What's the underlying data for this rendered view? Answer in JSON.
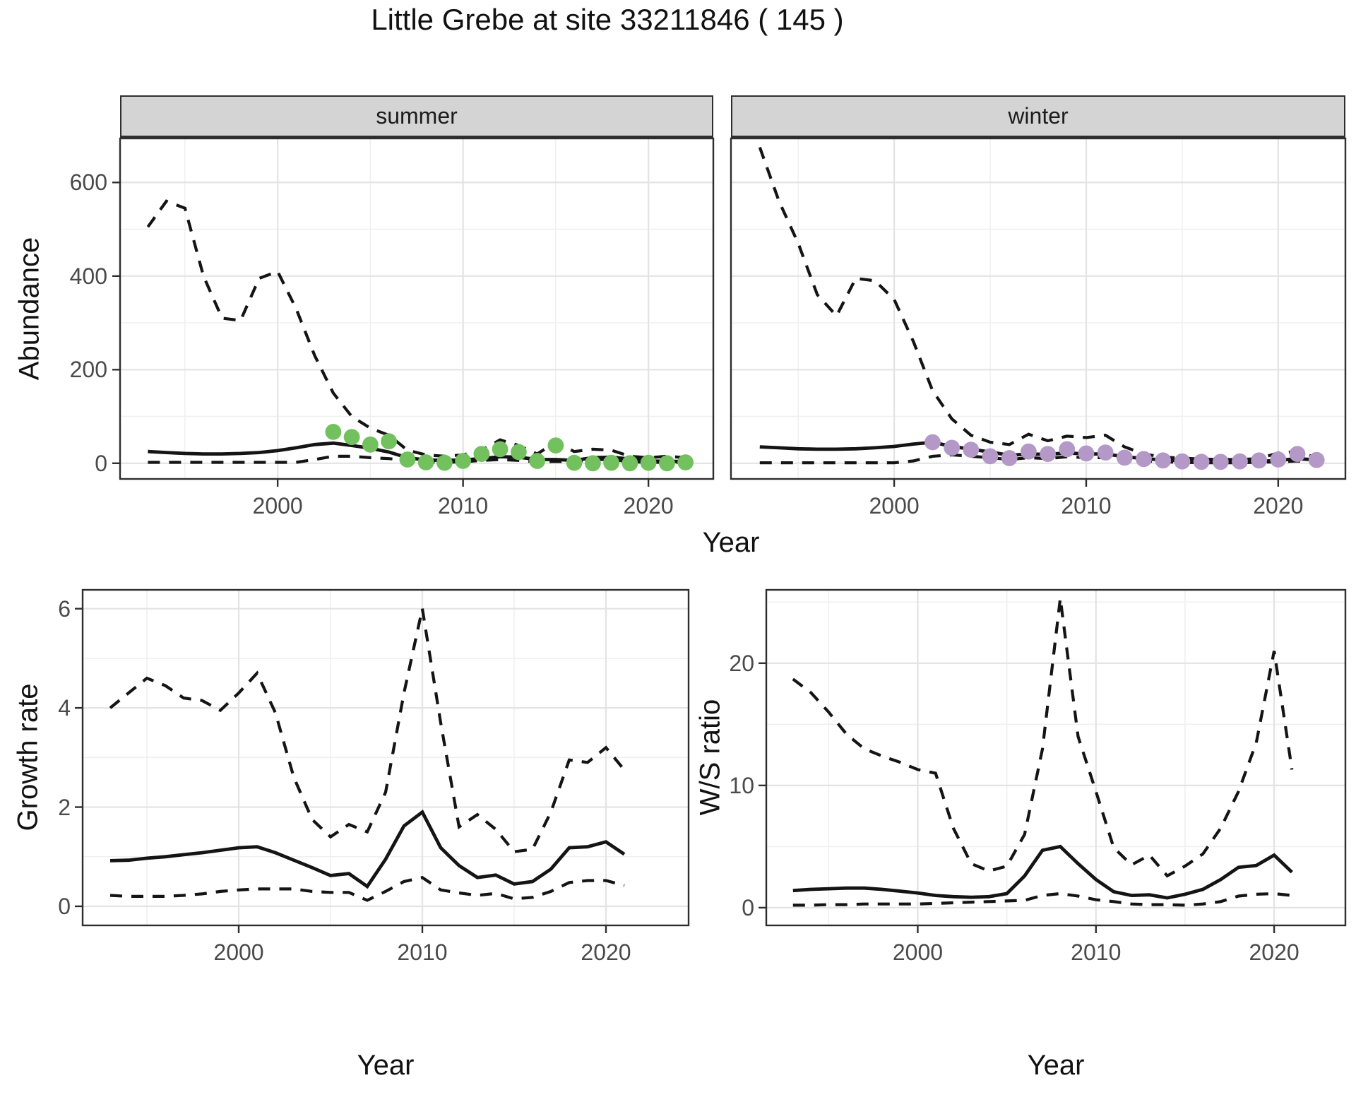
{
  "title": "Little Grebe at site 33211846 ( 145 )",
  "colors": {
    "line": "#141414",
    "border": "#2e2e2e",
    "grid_major": "#e3e3e3",
    "grid_minor": "#f0f0f0",
    "strip_bg": "#d4d4d4",
    "tick_text": "#4a4a4a",
    "summer_point": "#73c05f",
    "winter_point": "#b498c8"
  },
  "top": {
    "facet_labels": [
      "summer",
      "winter"
    ],
    "ylabel": "Abundance",
    "xlabel": "Year",
    "yticks": [
      0,
      200,
      400,
      600
    ],
    "xticks": [
      2000,
      2010,
      2020
    ]
  },
  "bottom_left": {
    "ylabel": "Growth rate",
    "xlabel": "Year",
    "yticks": [
      0,
      2,
      4,
      6
    ],
    "xticks": [
      2000,
      2010,
      2020
    ]
  },
  "bottom_right": {
    "ylabel": "W/S ratio",
    "xlabel": "Year",
    "yticks": [
      0,
      10,
      20
    ],
    "xticks": [
      2000,
      2010,
      2020
    ]
  },
  "chart_data": [
    {
      "id": "abundance_summer",
      "type": "line",
      "facet": "summer",
      "xlabel": "Year",
      "ylabel": "Abundance",
      "ylim": [
        0,
        694
      ],
      "xticks": [
        2000,
        2010,
        2020
      ],
      "yticks": [
        0,
        200,
        400,
        600
      ],
      "x": [
        1993,
        1994,
        1995,
        1996,
        1997,
        1998,
        1999,
        2000,
        2001,
        2002,
        2003,
        2004,
        2005,
        2006,
        2007,
        2008,
        2009,
        2010,
        2011,
        2012,
        2013,
        2014,
        2015,
        2016,
        2017,
        2018,
        2019,
        2020,
        2021,
        2022
      ],
      "series": [
        {
          "name": "upper 95% CI",
          "style": "dashed",
          "values": [
            505,
            560,
            545,
            400,
            310,
            305,
            395,
            410,
            330,
            230,
            150,
            100,
            75,
            60,
            28,
            18,
            15,
            18,
            28,
            50,
            38,
            20,
            45,
            25,
            30,
            28,
            15,
            12,
            15,
            12
          ]
        },
        {
          "name": "median fit",
          "style": "solid",
          "values": [
            25,
            23,
            21,
            20,
            20,
            21,
            23,
            27,
            33,
            40,
            43,
            38,
            32,
            24,
            12,
            7,
            6,
            7,
            10,
            14,
            13,
            8,
            8,
            6,
            12,
            13,
            9,
            5,
            4,
            4
          ]
        },
        {
          "name": "lower 95% CI",
          "style": "dashed",
          "values": [
            2,
            2,
            2,
            2,
            2,
            2,
            2,
            2,
            2,
            8,
            15,
            15,
            12,
            10,
            6,
            3,
            2,
            3,
            6,
            8,
            6,
            3,
            4,
            3,
            8,
            8,
            3,
            2,
            2,
            2
          ]
        }
      ],
      "points": {
        "name": "observed summer counts",
        "color": "#73c05f",
        "x": [
          2003,
          2004,
          2005,
          2006,
          2007,
          2008,
          2009,
          2010,
          2011,
          2012,
          2013,
          2014,
          2015,
          2016,
          2017,
          2018,
          2019,
          2020,
          2021,
          2022
        ],
        "y": [
          67,
          56,
          40,
          47,
          8,
          2,
          1,
          5,
          20,
          30,
          24,
          5,
          38,
          1,
          0,
          1,
          0,
          1,
          0,
          2
        ]
      }
    },
    {
      "id": "abundance_winter",
      "type": "line",
      "facet": "winter",
      "xlabel": "Year",
      "ylabel": "Abundance",
      "ylim": [
        0,
        694
      ],
      "xticks": [
        2000,
        2010,
        2020
      ],
      "yticks": [
        0,
        200,
        400,
        600
      ],
      "x": [
        1993,
        1994,
        1995,
        1996,
        1997,
        1998,
        1999,
        2000,
        2001,
        2002,
        2003,
        2004,
        2005,
        2006,
        2007,
        2008,
        2009,
        2010,
        2011,
        2012,
        2013,
        2014,
        2015,
        2016,
        2017,
        2018,
        2019,
        2020,
        2021,
        2022
      ],
      "series": [
        {
          "name": "upper 95% CI",
          "style": "dashed",
          "values": [
            675,
            560,
            470,
            360,
            315,
            395,
            390,
            350,
            260,
            155,
            95,
            60,
            45,
            40,
            62,
            48,
            58,
            55,
            60,
            35,
            20,
            13,
            11,
            9,
            8,
            8,
            10,
            22,
            25,
            12
          ]
        },
        {
          "name": "median fit",
          "style": "solid",
          "values": [
            35,
            33,
            31,
            30,
            30,
            31,
            33,
            36,
            41,
            45,
            36,
            30,
            24,
            17,
            20,
            19,
            22,
            20,
            20,
            14,
            10,
            7,
            5,
            4,
            3,
            3,
            4,
            6,
            10,
            7
          ]
        },
        {
          "name": "lower 95% CI",
          "style": "dashed",
          "values": [
            1,
            1,
            1,
            1,
            1,
            1,
            1,
            1,
            5,
            15,
            18,
            15,
            12,
            8,
            12,
            10,
            14,
            12,
            12,
            8,
            5,
            3,
            2,
            1,
            1,
            1,
            2,
            3,
            5,
            2
          ]
        }
      ],
      "points": {
        "name": "observed winter counts",
        "color": "#b498c8",
        "x": [
          2002,
          2003,
          2004,
          2005,
          2006,
          2007,
          2008,
          2009,
          2010,
          2011,
          2012,
          2013,
          2014,
          2015,
          2016,
          2017,
          2018,
          2019,
          2020,
          2021,
          2022
        ],
        "y": [
          45,
          33,
          29,
          15,
          11,
          25,
          20,
          30,
          21,
          23,
          12,
          9,
          6,
          4,
          3,
          3,
          4,
          6,
          8,
          20,
          7
        ]
      }
    },
    {
      "id": "growth_rate",
      "type": "line",
      "xlabel": "Year",
      "ylabel": "Growth rate",
      "ylim": [
        0,
        6.4
      ],
      "xticks": [
        2000,
        2010,
        2020
      ],
      "yticks": [
        0,
        2,
        4,
        6
      ],
      "x": [
        1993,
        1994,
        1995,
        1996,
        1997,
        1998,
        1999,
        2000,
        2001,
        2002,
        2003,
        2004,
        2005,
        2006,
        2007,
        2008,
        2009,
        2010,
        2011,
        2012,
        2013,
        2014,
        2015,
        2016,
        2017,
        2018,
        2019,
        2020,
        2021
      ],
      "series": [
        {
          "name": "upper 95% CI",
          "style": "dashed",
          "values": [
            4.0,
            4.3,
            4.6,
            4.45,
            4.2,
            4.15,
            3.95,
            4.3,
            4.7,
            3.9,
            2.6,
            1.75,
            1.4,
            1.65,
            1.5,
            2.3,
            4.3,
            6.0,
            3.7,
            1.6,
            1.85,
            1.55,
            1.1,
            1.15,
            1.9,
            2.95,
            2.9,
            3.2,
            2.75
          ]
        },
        {
          "name": "median fit",
          "style": "solid",
          "values": [
            0.92,
            0.93,
            0.97,
            1.0,
            1.04,
            1.08,
            1.13,
            1.18,
            1.2,
            1.08,
            0.93,
            0.78,
            0.62,
            0.66,
            0.4,
            0.95,
            1.62,
            1.9,
            1.18,
            0.82,
            0.58,
            0.63,
            0.45,
            0.5,
            0.75,
            1.18,
            1.2,
            1.3,
            1.05
          ]
        },
        {
          "name": "lower 95% CI",
          "style": "dashed",
          "values": [
            0.22,
            0.2,
            0.2,
            0.2,
            0.22,
            0.25,
            0.3,
            0.33,
            0.35,
            0.35,
            0.35,
            0.3,
            0.28,
            0.28,
            0.12,
            0.3,
            0.5,
            0.58,
            0.33,
            0.27,
            0.22,
            0.26,
            0.15,
            0.18,
            0.3,
            0.48,
            0.52,
            0.52,
            0.42
          ]
        }
      ]
    },
    {
      "id": "ws_ratio",
      "type": "line",
      "xlabel": "Year",
      "ylabel": "W/S ratio",
      "ylim": [
        0,
        26
      ],
      "xticks": [
        2000,
        2010,
        2020
      ],
      "yticks": [
        0,
        10,
        20
      ],
      "x": [
        1993,
        1994,
        1995,
        1996,
        1997,
        1998,
        1999,
        2000,
        2001,
        2002,
        2003,
        2004,
        2005,
        2006,
        2007,
        2008,
        2009,
        2010,
        2011,
        2012,
        2013,
        2014,
        2015,
        2016,
        2017,
        2018,
        2019,
        2020,
        2021
      ],
      "series": [
        {
          "name": "upper 95% CI",
          "style": "dashed",
          "values": [
            18.7,
            17.6,
            16.0,
            14.2,
            13.0,
            12.4,
            11.9,
            11.3,
            11.0,
            6.5,
            3.6,
            3.0,
            3.4,
            6.0,
            13.0,
            25.3,
            14.0,
            9.5,
            4.9,
            3.5,
            4.3,
            2.6,
            3.4,
            4.4,
            6.5,
            9.5,
            13.5,
            21.0,
            11.3
          ]
        },
        {
          "name": "median fit",
          "style": "solid",
          "values": [
            1.4,
            1.5,
            1.55,
            1.6,
            1.6,
            1.5,
            1.35,
            1.2,
            1.0,
            0.9,
            0.85,
            0.9,
            1.15,
            2.6,
            4.7,
            5.0,
            3.6,
            2.3,
            1.3,
            1.0,
            1.05,
            0.8,
            1.1,
            1.5,
            2.3,
            3.3,
            3.45,
            4.3,
            2.9
          ]
        },
        {
          "name": "lower 95% CI",
          "style": "dashed",
          "values": [
            0.2,
            0.2,
            0.25,
            0.25,
            0.3,
            0.3,
            0.3,
            0.3,
            0.35,
            0.4,
            0.45,
            0.5,
            0.55,
            0.6,
            1.0,
            1.15,
            0.95,
            0.65,
            0.5,
            0.3,
            0.25,
            0.25,
            0.2,
            0.3,
            0.5,
            0.95,
            1.1,
            1.15,
            1.0
          ]
        }
      ]
    }
  ]
}
